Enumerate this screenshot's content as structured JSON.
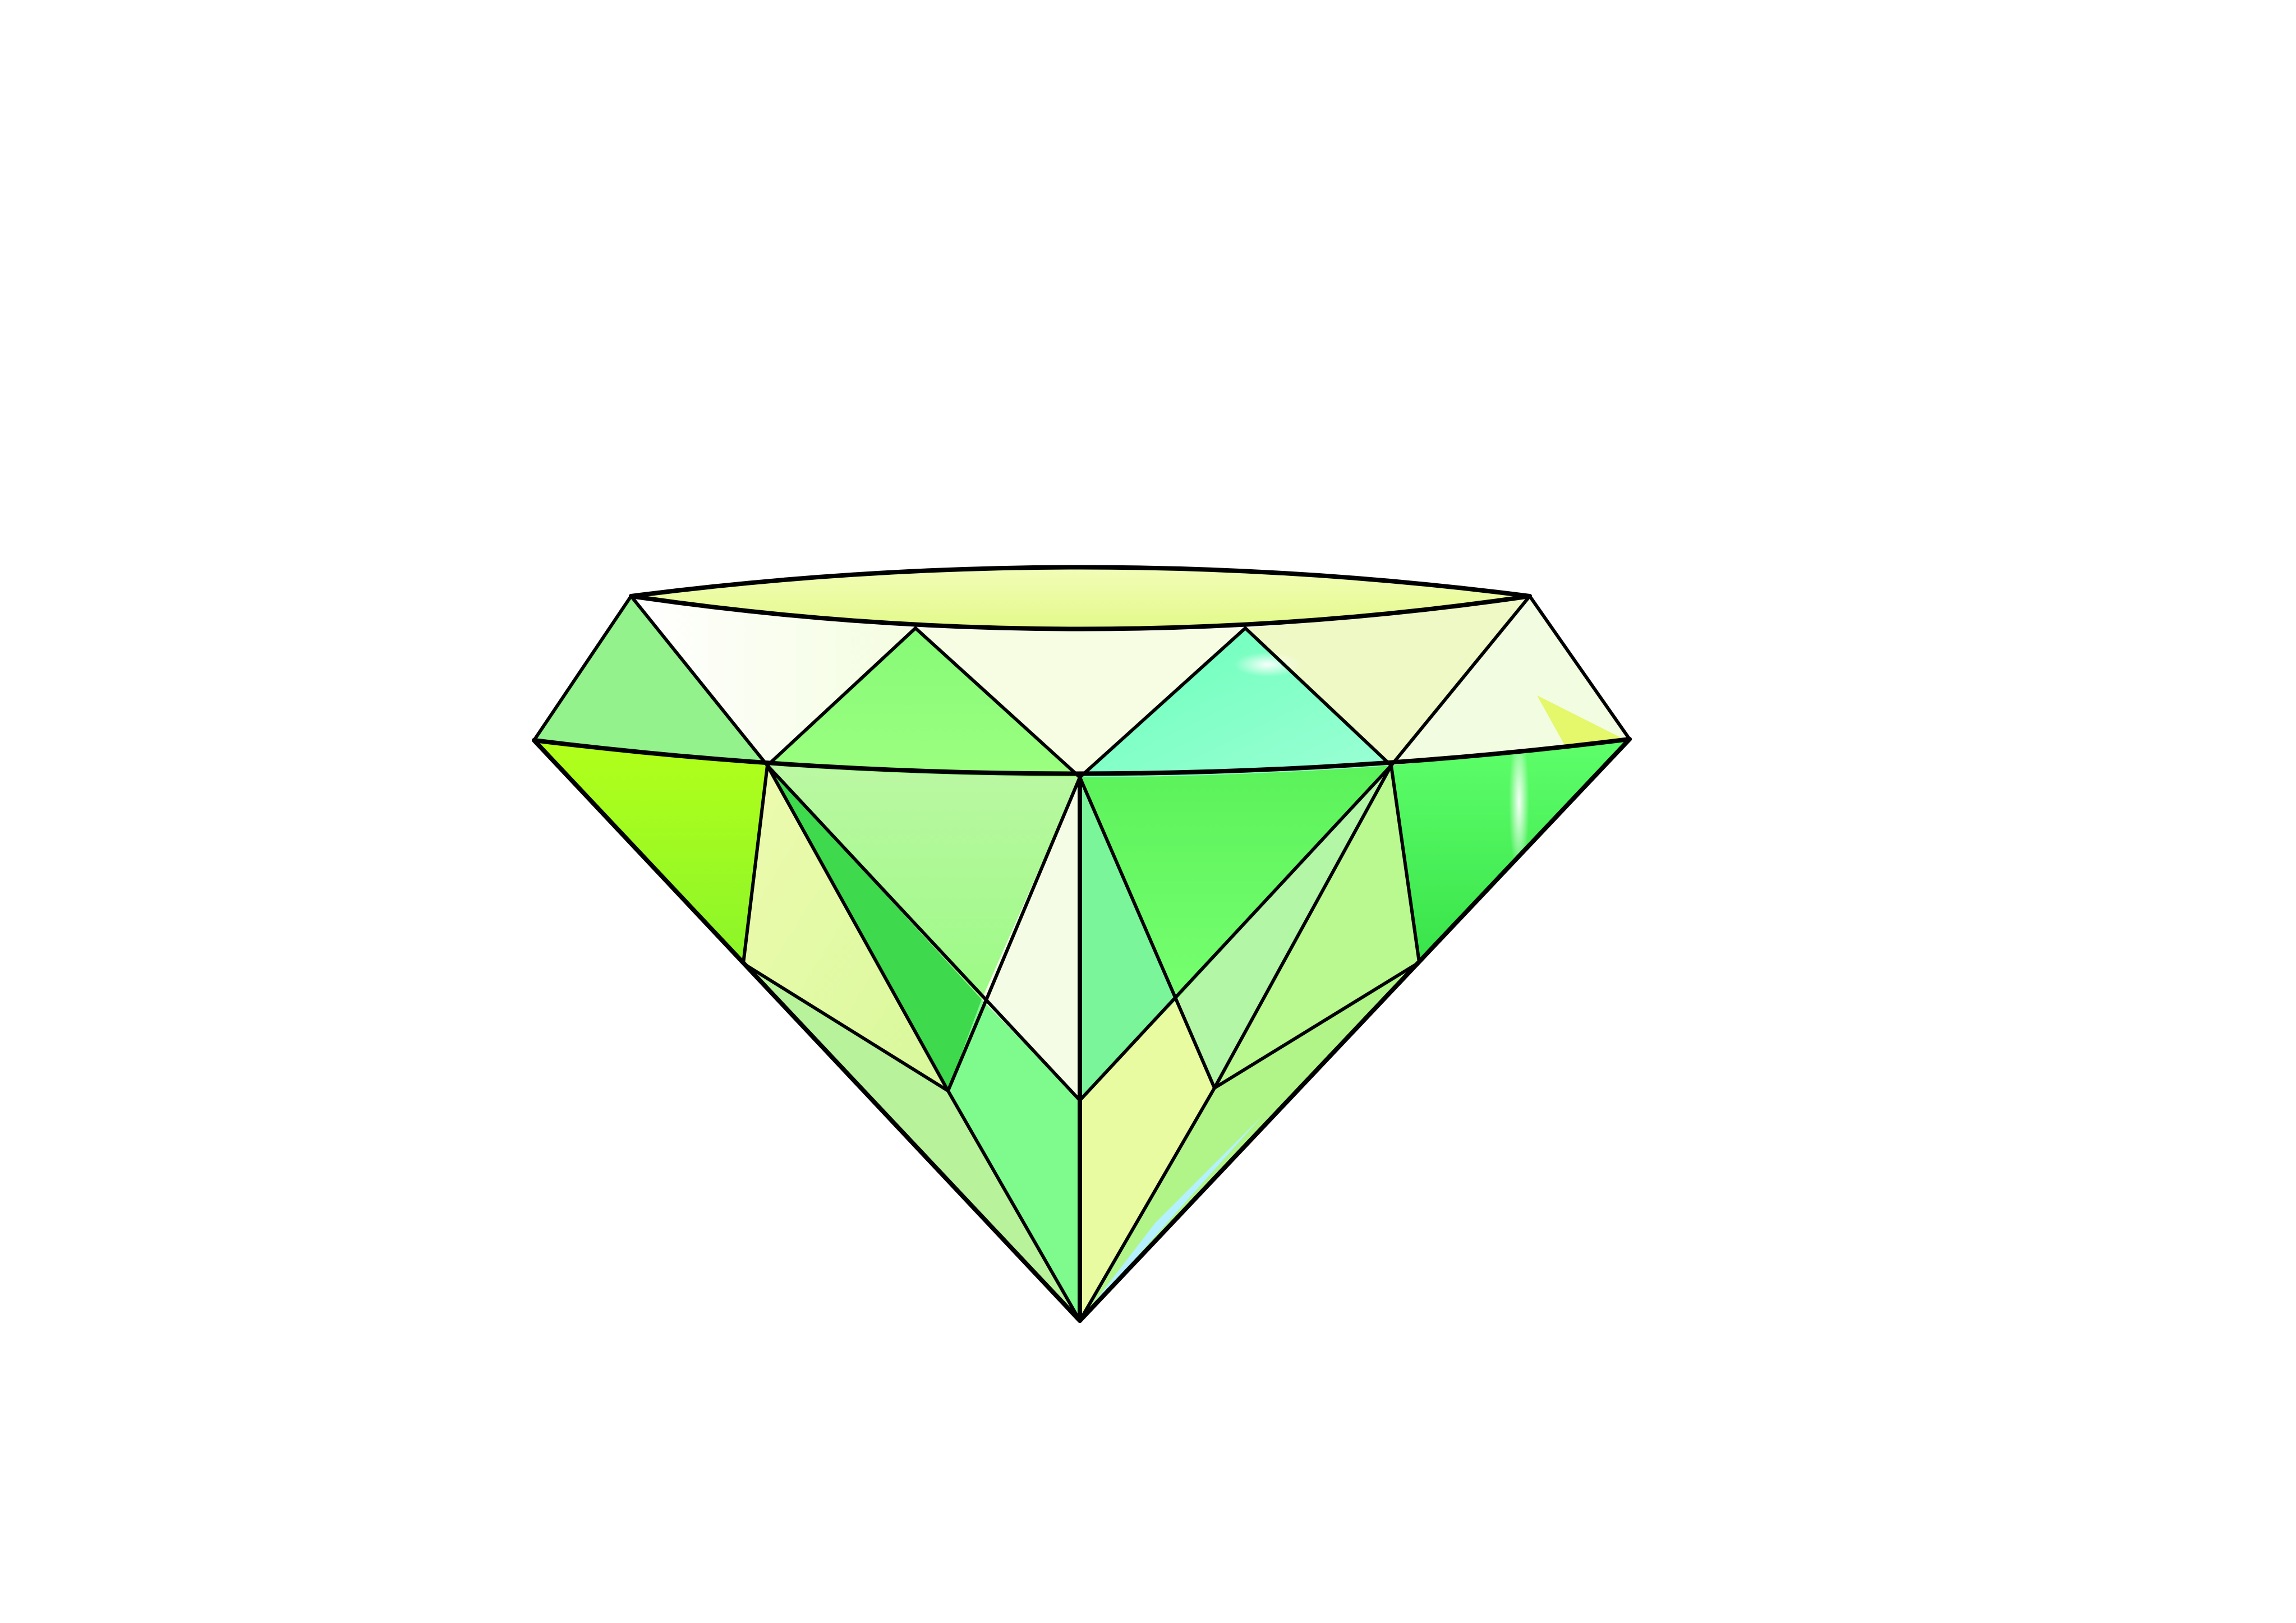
{
  "image": {
    "subject": "gemstone",
    "background_color": "#ffffff",
    "outline_color": "#000000",
    "palette": {
      "pale_yellow": "#e8f88f",
      "white_highlight": "#ffffff",
      "light_green": "#9cf08a",
      "mint": "#7ff5c8",
      "lime": "#99ff22",
      "bright_green": "#5fff5f",
      "deep_green": "#36d042",
      "sky_blue": "#bff2ff"
    }
  }
}
